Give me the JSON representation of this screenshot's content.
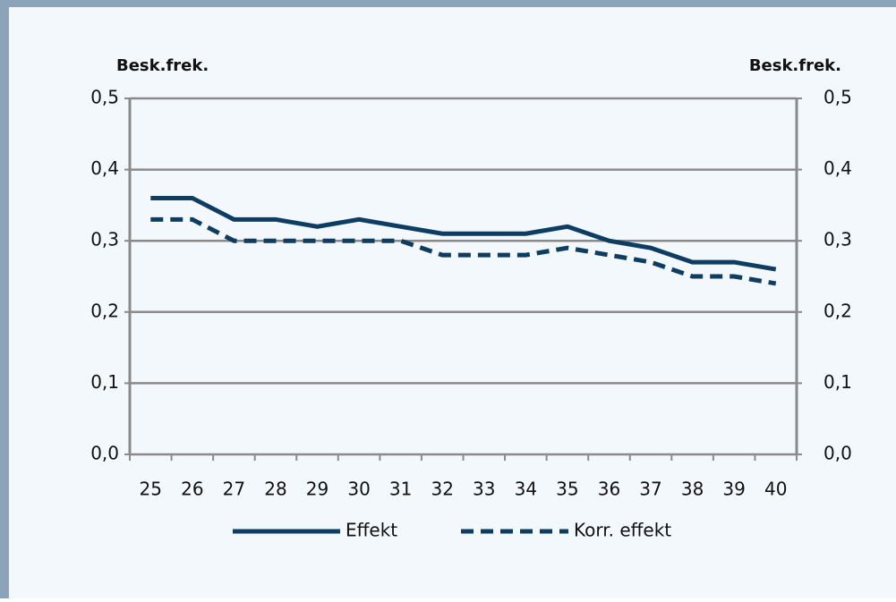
{
  "chart_data": {
    "type": "line",
    "y_label": "Besk.frek.",
    "y2_label": "Besk.frek.",
    "categories": [
      "25",
      "26",
      "27",
      "28",
      "29",
      "30",
      "31",
      "32",
      "33",
      "34",
      "35",
      "36",
      "37",
      "38",
      "39",
      "40"
    ],
    "series": [
      {
        "name": "Effekt",
        "color": "#0d3d63",
        "dash": false,
        "values": [
          0.36,
          0.36,
          0.33,
          0.33,
          0.32,
          0.33,
          0.32,
          0.31,
          0.31,
          0.31,
          0.32,
          0.3,
          0.29,
          0.27,
          0.27,
          0.26
        ]
      },
      {
        "name": "Korr. effekt",
        "color": "#0d3d63",
        "dash": true,
        "values": [
          0.33,
          0.33,
          0.3,
          0.3,
          0.3,
          0.3,
          0.3,
          0.28,
          0.28,
          0.28,
          0.29,
          0.28,
          0.27,
          0.25,
          0.25,
          0.24
        ]
      }
    ],
    "ylim": [
      0,
      0.5
    ],
    "yticks": [
      {
        "value": 0,
        "label": "0,0"
      },
      {
        "value": 0.1,
        "label": "0,1"
      },
      {
        "value": 0.2,
        "label": "0,2"
      },
      {
        "value": 0.3,
        "label": "0,3"
      },
      {
        "value": 0.4,
        "label": "0,4"
      },
      {
        "value": 0.5,
        "label": "0,5"
      }
    ],
    "y2lim": [
      0,
      0.5
    ],
    "y2ticks": [
      {
        "value": 0,
        "label": "0,0"
      },
      {
        "value": 0.1,
        "label": "0,1"
      },
      {
        "value": 0.2,
        "label": "0,2"
      },
      {
        "value": 0.3,
        "label": "0,3"
      },
      {
        "value": 0.4,
        "label": "0,4"
      },
      {
        "value": 0.5,
        "label": "0,5"
      }
    ],
    "grid": true,
    "legend": "bottom"
  }
}
